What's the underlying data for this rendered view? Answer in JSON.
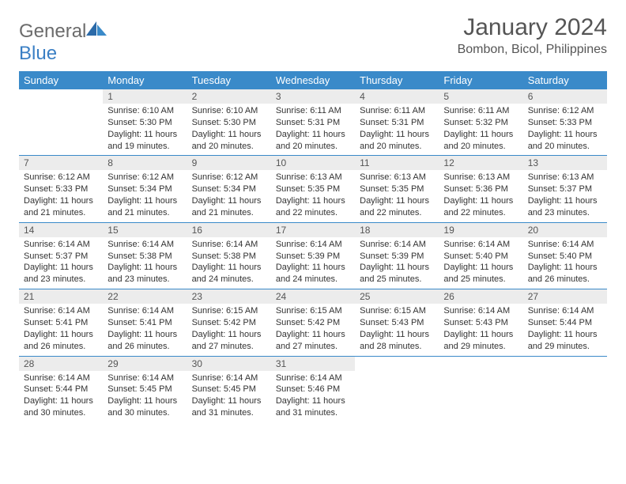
{
  "logo": {
    "text_general": "General",
    "text_blue": "Blue"
  },
  "title": "January 2024",
  "location": "Bombon, Bicol, Philippines",
  "colors": {
    "header_bg": "#3a8ac9",
    "daynum_bg": "#ececec",
    "row_border": "#3a8ac9"
  },
  "day_headers": [
    "Sunday",
    "Monday",
    "Tuesday",
    "Wednesday",
    "Thursday",
    "Friday",
    "Saturday"
  ],
  "weeks": [
    [
      null,
      {
        "n": "1",
        "sr": "6:10 AM",
        "ss": "5:30 PM",
        "dl": "11 hours and 19 minutes."
      },
      {
        "n": "2",
        "sr": "6:10 AM",
        "ss": "5:30 PM",
        "dl": "11 hours and 20 minutes."
      },
      {
        "n": "3",
        "sr": "6:11 AM",
        "ss": "5:31 PM",
        "dl": "11 hours and 20 minutes."
      },
      {
        "n": "4",
        "sr": "6:11 AM",
        "ss": "5:31 PM",
        "dl": "11 hours and 20 minutes."
      },
      {
        "n": "5",
        "sr": "6:11 AM",
        "ss": "5:32 PM",
        "dl": "11 hours and 20 minutes."
      },
      {
        "n": "6",
        "sr": "6:12 AM",
        "ss": "5:33 PM",
        "dl": "11 hours and 20 minutes."
      }
    ],
    [
      {
        "n": "7",
        "sr": "6:12 AM",
        "ss": "5:33 PM",
        "dl": "11 hours and 21 minutes."
      },
      {
        "n": "8",
        "sr": "6:12 AM",
        "ss": "5:34 PM",
        "dl": "11 hours and 21 minutes."
      },
      {
        "n": "9",
        "sr": "6:12 AM",
        "ss": "5:34 PM",
        "dl": "11 hours and 21 minutes."
      },
      {
        "n": "10",
        "sr": "6:13 AM",
        "ss": "5:35 PM",
        "dl": "11 hours and 22 minutes."
      },
      {
        "n": "11",
        "sr": "6:13 AM",
        "ss": "5:35 PM",
        "dl": "11 hours and 22 minutes."
      },
      {
        "n": "12",
        "sr": "6:13 AM",
        "ss": "5:36 PM",
        "dl": "11 hours and 22 minutes."
      },
      {
        "n": "13",
        "sr": "6:13 AM",
        "ss": "5:37 PM",
        "dl": "11 hours and 23 minutes."
      }
    ],
    [
      {
        "n": "14",
        "sr": "6:14 AM",
        "ss": "5:37 PM",
        "dl": "11 hours and 23 minutes."
      },
      {
        "n": "15",
        "sr": "6:14 AM",
        "ss": "5:38 PM",
        "dl": "11 hours and 23 minutes."
      },
      {
        "n": "16",
        "sr": "6:14 AM",
        "ss": "5:38 PM",
        "dl": "11 hours and 24 minutes."
      },
      {
        "n": "17",
        "sr": "6:14 AM",
        "ss": "5:39 PM",
        "dl": "11 hours and 24 minutes."
      },
      {
        "n": "18",
        "sr": "6:14 AM",
        "ss": "5:39 PM",
        "dl": "11 hours and 25 minutes."
      },
      {
        "n": "19",
        "sr": "6:14 AM",
        "ss": "5:40 PM",
        "dl": "11 hours and 25 minutes."
      },
      {
        "n": "20",
        "sr": "6:14 AM",
        "ss": "5:40 PM",
        "dl": "11 hours and 26 minutes."
      }
    ],
    [
      {
        "n": "21",
        "sr": "6:14 AM",
        "ss": "5:41 PM",
        "dl": "11 hours and 26 minutes."
      },
      {
        "n": "22",
        "sr": "6:14 AM",
        "ss": "5:41 PM",
        "dl": "11 hours and 26 minutes."
      },
      {
        "n": "23",
        "sr": "6:15 AM",
        "ss": "5:42 PM",
        "dl": "11 hours and 27 minutes."
      },
      {
        "n": "24",
        "sr": "6:15 AM",
        "ss": "5:42 PM",
        "dl": "11 hours and 27 minutes."
      },
      {
        "n": "25",
        "sr": "6:15 AM",
        "ss": "5:43 PM",
        "dl": "11 hours and 28 minutes."
      },
      {
        "n": "26",
        "sr": "6:14 AM",
        "ss": "5:43 PM",
        "dl": "11 hours and 29 minutes."
      },
      {
        "n": "27",
        "sr": "6:14 AM",
        "ss": "5:44 PM",
        "dl": "11 hours and 29 minutes."
      }
    ],
    [
      {
        "n": "28",
        "sr": "6:14 AM",
        "ss": "5:44 PM",
        "dl": "11 hours and 30 minutes."
      },
      {
        "n": "29",
        "sr": "6:14 AM",
        "ss": "5:45 PM",
        "dl": "11 hours and 30 minutes."
      },
      {
        "n": "30",
        "sr": "6:14 AM",
        "ss": "5:45 PM",
        "dl": "11 hours and 31 minutes."
      },
      {
        "n": "31",
        "sr": "6:14 AM",
        "ss": "5:46 PM",
        "dl": "11 hours and 31 minutes."
      },
      null,
      null,
      null
    ]
  ],
  "labels": {
    "sunrise": "Sunrise:",
    "sunset": "Sunset:",
    "daylight": "Daylight:"
  }
}
